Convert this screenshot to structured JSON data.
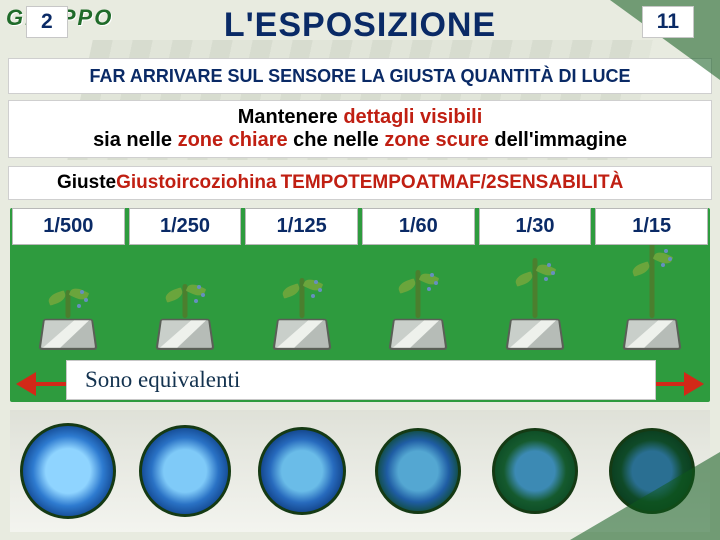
{
  "logo": {
    "line1": "GRUPPO",
    "color": "#1f6b2a"
  },
  "title": {
    "text": "L'ESPOSIZIONE",
    "color": "#0a2a66"
  },
  "subtitle": {
    "text": "FAR ARRIVARE SUL SENSORE LA GIUSTA QUANTITÀ DI LUCE",
    "color": "#0a2a66"
  },
  "detail": {
    "prefix": "Mantenere ",
    "hl1": "dettagli visibili",
    "mid1": "sia nelle ",
    "hl2": "zone chiare",
    "mid2": " che nelle ",
    "hl3": "zone scure",
    "suffix": " dell'immagine",
    "highlight_color": "#c01f12"
  },
  "combo": {
    "lead": "Giuste ",
    "garble": "Giustoircoziohina",
    "garble_color": "#c01f12",
    "t_prefix": "TEMPO",
    "t_mid": "TEMPOATMAF/2SENS",
    "t_suffix": "ABILITÀ",
    "right_color": "#c01f12"
  },
  "shutter": {
    "values": [
      "1/500",
      "1/250",
      "1/125",
      "1/60",
      "1/30",
      "1/15"
    ],
    "text_color": "#0a2a66"
  },
  "sprouts": {
    "count": 6,
    "heights": [
      28,
      34,
      40,
      48,
      60,
      76
    ]
  },
  "arrow": {
    "color": "#d22918",
    "left_label": "2",
    "right_label": "11",
    "label_color": "#0a2a66"
  },
  "equiv": {
    "text": "Sono equivalenti",
    "color": "#13324f"
  },
  "apertures": {
    "count": 6,
    "diameters": [
      96,
      92,
      88,
      86,
      86,
      86
    ],
    "gradients": [
      {
        "c1": "#8fd4ff",
        "c2": "#2e7bd0",
        "c3": "#0e3f86",
        "c4": "#0a2a5c"
      },
      {
        "c1": "#7fcaf8",
        "c2": "#2a72c5",
        "c3": "#0e3f86",
        "c4": "#0a2a5c"
      },
      {
        "c1": "#6abce8",
        "c2": "#276abd",
        "c3": "#0d3a7c",
        "c4": "#0c4a24"
      },
      {
        "c1": "#54a7d2",
        "c2": "#1f5da4",
        "c3": "#0e4a2a",
        "c4": "#0a3a1c"
      },
      {
        "c1": "#3c8ab4",
        "c2": "#155a2e",
        "c3": "#0c4a24",
        "c4": "#07341a"
      },
      {
        "c1": "#2a6f92",
        "c2": "#0f4a28",
        "c3": "#0a3c1e",
        "c4": "#062c16"
      }
    ]
  },
  "green_band_color": "#2e9b3e"
}
